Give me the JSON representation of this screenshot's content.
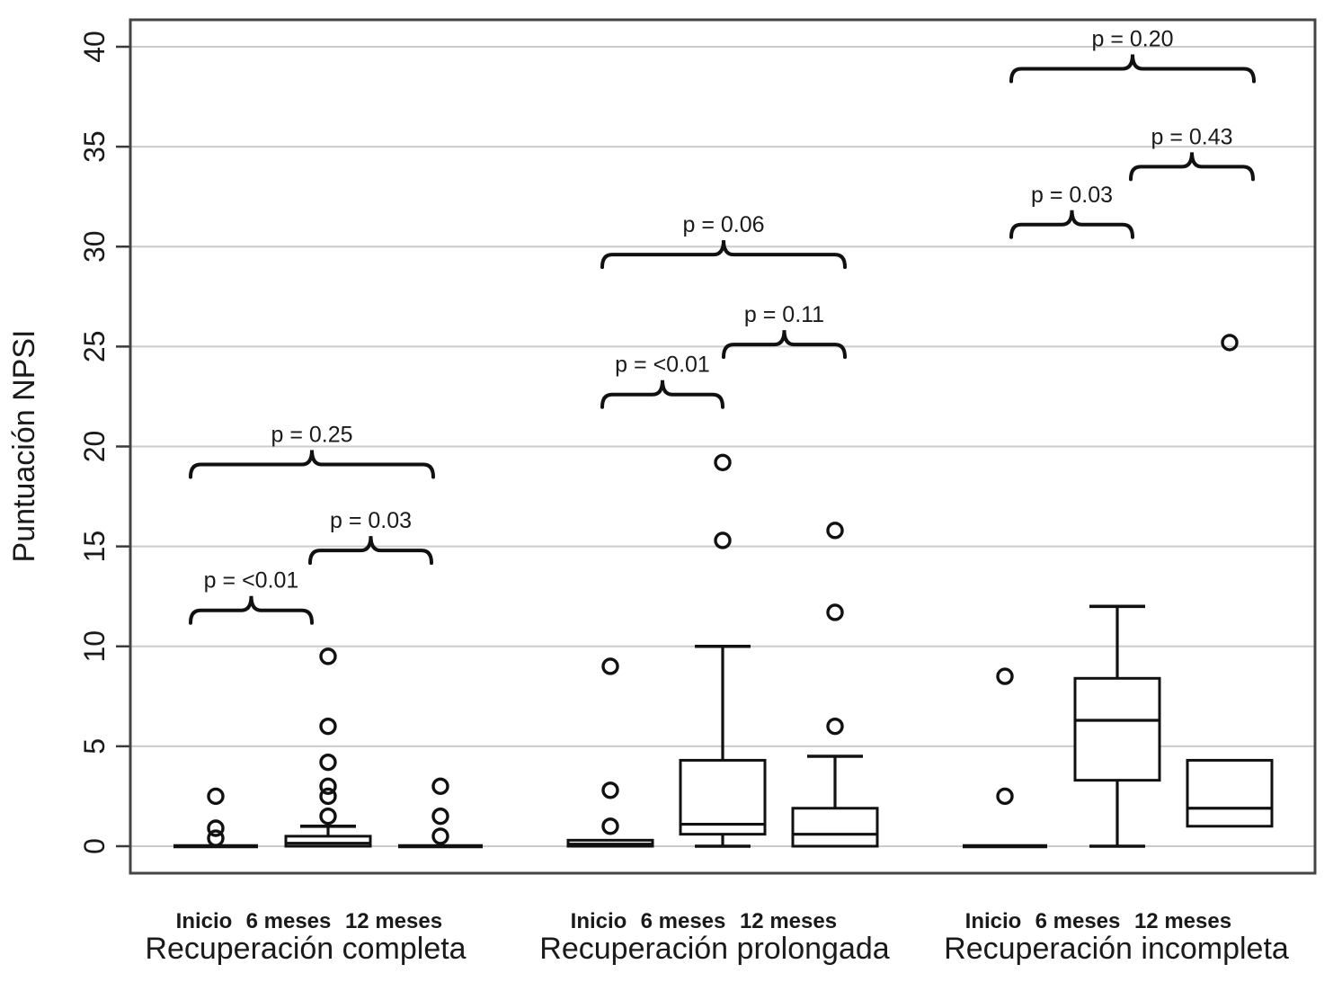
{
  "figure": {
    "title": "",
    "ylabel": "Puntuación NPSI"
  },
  "chart_data": {
    "type": "boxplot",
    "title": "",
    "ylabel": "Puntuación NPSI",
    "ylim": [
      -1.3,
      41.3
    ],
    "yticks": [
      0,
      5,
      10,
      15,
      20,
      25,
      30,
      35,
      40
    ],
    "grid": true,
    "legend": "none",
    "x_tick_labels": [
      "Inicio",
      "6 meses",
      "12 meses"
    ],
    "groups": [
      {
        "label": "Recuperación completa",
        "boxes": [
          {
            "label": "Inicio",
            "q1": 0,
            "median": 0,
            "q3": 0,
            "whisker_low": 0,
            "whisker_high": 0,
            "outliers": [
              2.5,
              0.9,
              0.4
            ]
          },
          {
            "label": "6 meses",
            "q1": 0,
            "median": 0.15,
            "q3": 0.5,
            "whisker_low": 0,
            "whisker_high": 1.0,
            "outliers": [
              9.5,
              6.0,
              4.2,
              3.0,
              2.5,
              1.5
            ]
          },
          {
            "label": "12 meses",
            "q1": 0,
            "median": 0,
            "q3": 0,
            "whisker_low": 0,
            "whisker_high": 0,
            "outliers": [
              3.0,
              1.5,
              0.5
            ]
          }
        ],
        "comparisons": [
          {
            "from": 0,
            "to": 1,
            "label": "p = <0.01",
            "y": 11.8
          },
          {
            "from": 1,
            "to": 2,
            "label": "p = 0.03",
            "y": 14.8
          },
          {
            "from": 0,
            "to": 2,
            "label": "p = 0.25",
            "y": 19.1
          }
        ]
      },
      {
        "label": "Recuperación prolongada",
        "boxes": [
          {
            "label": "Inicio",
            "q1": 0,
            "median": 0.1,
            "q3": 0.3,
            "whisker_low": 0,
            "whisker_high": 0.3,
            "outliers": [
              9.0,
              2.8,
              1.0
            ]
          },
          {
            "label": "6 meses",
            "q1": 0.6,
            "median": 1.1,
            "q3": 4.3,
            "whisker_low": 0,
            "whisker_high": 10.0,
            "outliers": [
              19.2,
              15.3
            ]
          },
          {
            "label": "12 meses",
            "q1": 0,
            "median": 0.6,
            "q3": 1.9,
            "whisker_low": 0,
            "whisker_high": 4.5,
            "outliers": [
              15.8,
              11.7,
              6.0
            ]
          }
        ],
        "comparisons": [
          {
            "from": 0,
            "to": 1,
            "label": "p = <0.01",
            "y": 22.6
          },
          {
            "from": 1,
            "to": 2,
            "label": "p = 0.11",
            "y": 25.1
          },
          {
            "from": 0,
            "to": 2,
            "label": "p = 0.06",
            "y": 29.6
          }
        ]
      },
      {
        "label": "Recuperación incompleta",
        "boxes": [
          {
            "label": "Inicio",
            "q1": 0,
            "median": 0,
            "q3": 0,
            "whisker_low": 0,
            "whisker_high": 0,
            "outliers": [
              8.5,
              2.5
            ]
          },
          {
            "label": "6 meses",
            "q1": 3.3,
            "median": 6.3,
            "q3": 8.4,
            "whisker_low": 0,
            "whisker_high": 12.0,
            "outliers": []
          },
          {
            "label": "12 meses",
            "q1": 1.0,
            "median": 1.9,
            "q3": 4.3,
            "whisker_low": 1.0,
            "whisker_high": 4.3,
            "outliers": [
              25.2
            ]
          }
        ],
        "comparisons": [
          {
            "from": 0,
            "to": 1,
            "label": "p = 0.03",
            "y": 31.1
          },
          {
            "from": 1,
            "to": 2,
            "label": "p = 0.43",
            "y": 34.0
          },
          {
            "from": 0,
            "to": 2,
            "label": "p = 0.20",
            "y": 38.9
          }
        ]
      }
    ],
    "colors": {
      "box_stroke": "#111111",
      "grid": "#cbcbcb",
      "border": "#444444",
      "text": "#1a1a1a"
    }
  }
}
